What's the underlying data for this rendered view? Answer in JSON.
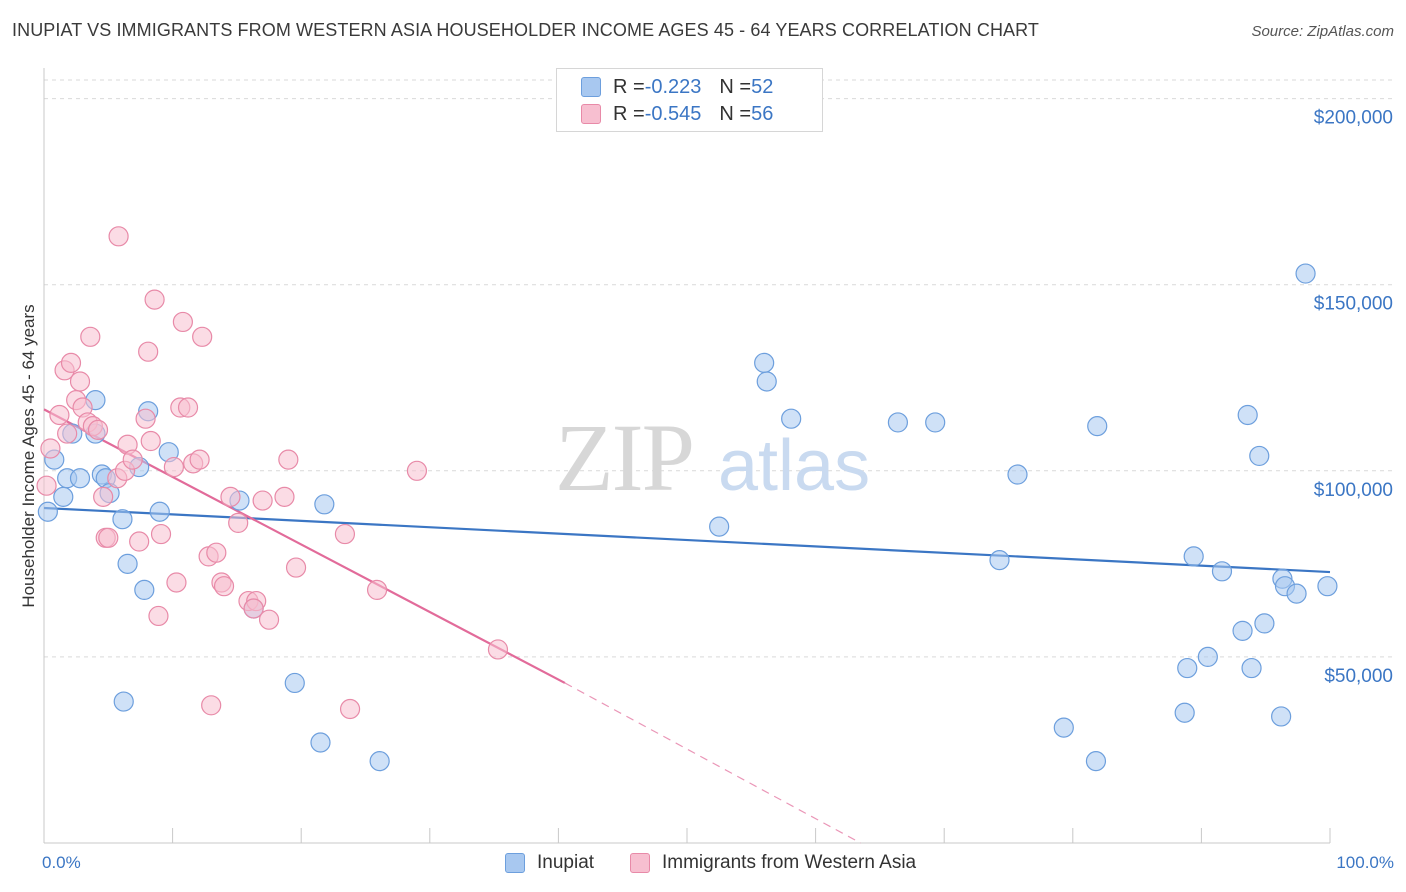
{
  "title": "INUPIAT VS IMMIGRANTS FROM WESTERN ASIA HOUSEHOLDER INCOME AGES 45 - 64 YEARS CORRELATION CHART",
  "source": "Source: ZipAtlas.com",
  "watermark": {
    "zip": "ZIP",
    "atlas": "atlas"
  },
  "legend": {
    "rows": [
      {
        "r_label": "R = ",
        "r_value": "-0.223",
        "n_label": "N = ",
        "n_value": "52",
        "color": "#a8c8f0",
        "border": "#6d9fdd"
      },
      {
        "r_label": "R = ",
        "r_value": "-0.545",
        "n_label": "N = ",
        "n_value": "56",
        "color": "#f7bfd0",
        "border": "#e88aa8"
      }
    ]
  },
  "bottom_legend": [
    "Inupiat",
    "Immigrants from Western Asia"
  ],
  "colors": {
    "blue": "#3b76c4",
    "blue_fill": "#a8c8f0",
    "pink": "#e26b9a",
    "pink_fill": "#f7bfd0",
    "grid": "#d9d9d9"
  },
  "chart_data": {
    "type": "scatter",
    "title": "INUPIAT VS IMMIGRANTS FROM WESTERN ASIA HOUSEHOLDER INCOME AGES 45 - 64 YEARS CORRELATION CHART",
    "xlabel": "",
    "ylabel": "Householder Income Ages 45 - 64 years",
    "x_tick_labels": [
      "0.0%",
      "100.0%"
    ],
    "y_tick_labels": [
      "$50,000",
      "$100,000",
      "$150,000",
      "$200,000"
    ],
    "y_ticks": [
      50000,
      100000,
      150000,
      200000
    ],
    "xlim": [
      0,
      100
    ],
    "ylim": [
      0,
      205000
    ],
    "grid": true,
    "legend_placement": "top-center",
    "series": [
      {
        "name": "Inupiat",
        "color": "#3b76c4",
        "trend": {
          "x": [
            0,
            100
          ],
          "y": [
            90000,
            72800
          ],
          "dashed_to": null
        },
        "points": [
          [
            0.3,
            89000
          ],
          [
            0.8,
            103000
          ],
          [
            1.5,
            93000
          ],
          [
            1.8,
            98000
          ],
          [
            2.2,
            110000
          ],
          [
            2.8,
            98000
          ],
          [
            4.0,
            110000
          ],
          [
            4.0,
            119000
          ],
          [
            4.5,
            99000
          ],
          [
            4.8,
            98000
          ],
          [
            5.1,
            94000
          ],
          [
            6.1,
            87000
          ],
          [
            6.2,
            38000
          ],
          [
            6.5,
            75000
          ],
          [
            7.4,
            101000
          ],
          [
            7.8,
            68000
          ],
          [
            8.1,
            116000
          ],
          [
            9.0,
            89000
          ],
          [
            9.7,
            105000
          ],
          [
            15.2,
            92000
          ],
          [
            16.3,
            63000
          ],
          [
            19.5,
            43000
          ],
          [
            21.5,
            27000
          ],
          [
            21.8,
            91000
          ],
          [
            26.1,
            22000
          ],
          [
            52.5,
            85000
          ],
          [
            56.0,
            129000
          ],
          [
            56.2,
            124000
          ],
          [
            58.1,
            114000
          ],
          [
            66.4,
            113000
          ],
          [
            69.3,
            113000
          ],
          [
            74.3,
            76000
          ],
          [
            75.7,
            99000
          ],
          [
            79.3,
            31000
          ],
          [
            81.8,
            22000
          ],
          [
            81.9,
            112000
          ],
          [
            88.7,
            35000
          ],
          [
            88.9,
            47000
          ],
          [
            89.4,
            77000
          ],
          [
            90.5,
            50000
          ],
          [
            91.6,
            73000
          ],
          [
            93.2,
            57000
          ],
          [
            93.6,
            115000
          ],
          [
            93.9,
            47000
          ],
          [
            94.5,
            104000
          ],
          [
            94.9,
            59000
          ],
          [
            96.2,
            34000
          ],
          [
            96.3,
            71000
          ],
          [
            96.5,
            69000
          ],
          [
            97.4,
            67000
          ],
          [
            98.1,
            153000
          ],
          [
            99.8,
            69000
          ]
        ]
      },
      {
        "name": "Immigrants from Western Asia",
        "color": "#e26b9a",
        "trend": {
          "x": [
            0,
            40.5
          ],
          "y": [
            116500,
            43000
          ],
          "dashed_to": [
            63.5,
            0
          ]
        },
        "points": [
          [
            0.2,
            96000
          ],
          [
            0.5,
            106000
          ],
          [
            1.2,
            115000
          ],
          [
            1.6,
            127000
          ],
          [
            1.8,
            110000
          ],
          [
            2.1,
            129000
          ],
          [
            2.5,
            119000
          ],
          [
            2.8,
            124000
          ],
          [
            3.0,
            117000
          ],
          [
            3.4,
            113000
          ],
          [
            3.6,
            136000
          ],
          [
            3.8,
            112000
          ],
          [
            4.2,
            111000
          ],
          [
            4.6,
            93000
          ],
          [
            4.8,
            82000
          ],
          [
            5.0,
            82000
          ],
          [
            5.7,
            98000
          ],
          [
            5.8,
            163000
          ],
          [
            6.3,
            100000
          ],
          [
            6.5,
            107000
          ],
          [
            6.9,
            103000
          ],
          [
            7.4,
            81000
          ],
          [
            7.9,
            114000
          ],
          [
            8.1,
            132000
          ],
          [
            8.3,
            108000
          ],
          [
            8.6,
            146000
          ],
          [
            8.9,
            61000
          ],
          [
            9.1,
            83000
          ],
          [
            10.1,
            101000
          ],
          [
            10.3,
            70000
          ],
          [
            10.6,
            117000
          ],
          [
            10.8,
            140000
          ],
          [
            11.2,
            117000
          ],
          [
            11.6,
            102000
          ],
          [
            12.1,
            103000
          ],
          [
            12.3,
            136000
          ],
          [
            12.8,
            77000
          ],
          [
            13.0,
            37000
          ],
          [
            13.4,
            78000
          ],
          [
            13.8,
            70000
          ],
          [
            14.0,
            69000
          ],
          [
            14.5,
            93000
          ],
          [
            15.1,
            86000
          ],
          [
            15.9,
            65000
          ],
          [
            16.5,
            65000
          ],
          [
            17.0,
            92000
          ],
          [
            17.5,
            60000
          ],
          [
            18.7,
            93000
          ],
          [
            19.0,
            103000
          ],
          [
            19.6,
            74000
          ],
          [
            23.4,
            83000
          ],
          [
            23.8,
            36000
          ],
          [
            25.9,
            68000
          ],
          [
            29.0,
            100000
          ],
          [
            35.3,
            52000
          ],
          [
            16.3,
            63000
          ]
        ]
      }
    ]
  }
}
